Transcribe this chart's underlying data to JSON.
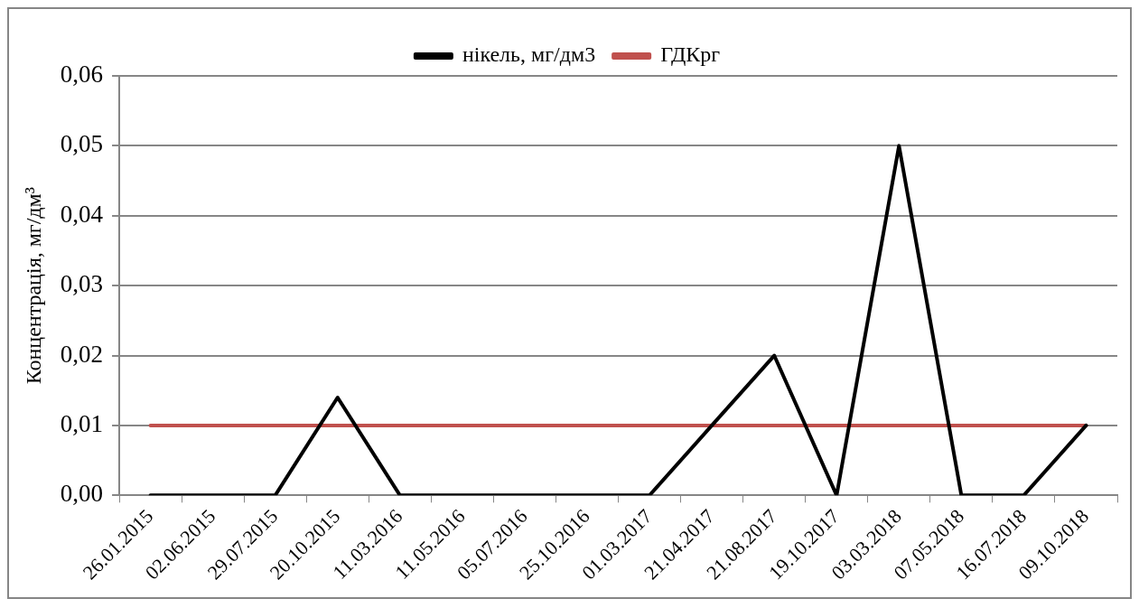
{
  "chart_data": {
    "type": "line",
    "ylabel": "Концентрація, мг/дм³",
    "categories": [
      "26.01.2015",
      "02.06.2015",
      "29.07.2015",
      "20.10.2015",
      "11.03.2016",
      "11.05.2016",
      "05.07.2016",
      "25.10.2016",
      "01.03.2017",
      "21.04.2017",
      "21.08.2017",
      "19.10.2017",
      "03.03.2018",
      "07.05.2018",
      "16.07.2018",
      "09.10.2018"
    ],
    "series": [
      {
        "name": "нікель, мг/дм3",
        "color": "#000000",
        "values": [
          0,
          0,
          0,
          0.014,
          0,
          0,
          0,
          0,
          0,
          0.01,
          0.02,
          0,
          0.05,
          0,
          0,
          0.01
        ]
      },
      {
        "name": "ГДКрг",
        "color": "#c0504d",
        "values": [
          0.01,
          0.01,
          0.01,
          0.01,
          0.01,
          0.01,
          0.01,
          0.01,
          0.01,
          0.01,
          0.01,
          0.01,
          0.01,
          0.01,
          0.01,
          0.01
        ]
      }
    ],
    "ylim": [
      0,
      0.06
    ],
    "yticks": [
      {
        "value": 0,
        "label": "0,00"
      },
      {
        "value": 0.01,
        "label": "0,01"
      },
      {
        "value": 0.02,
        "label": "0,02"
      },
      {
        "value": 0.03,
        "label": "0,03"
      },
      {
        "value": 0.04,
        "label": "0,04"
      },
      {
        "value": 0.05,
        "label": "0,05"
      },
      {
        "value": 0.06,
        "label": "0,06"
      }
    ],
    "grid": "y",
    "legend": "top",
    "marker": "none",
    "line_style": "solid"
  }
}
